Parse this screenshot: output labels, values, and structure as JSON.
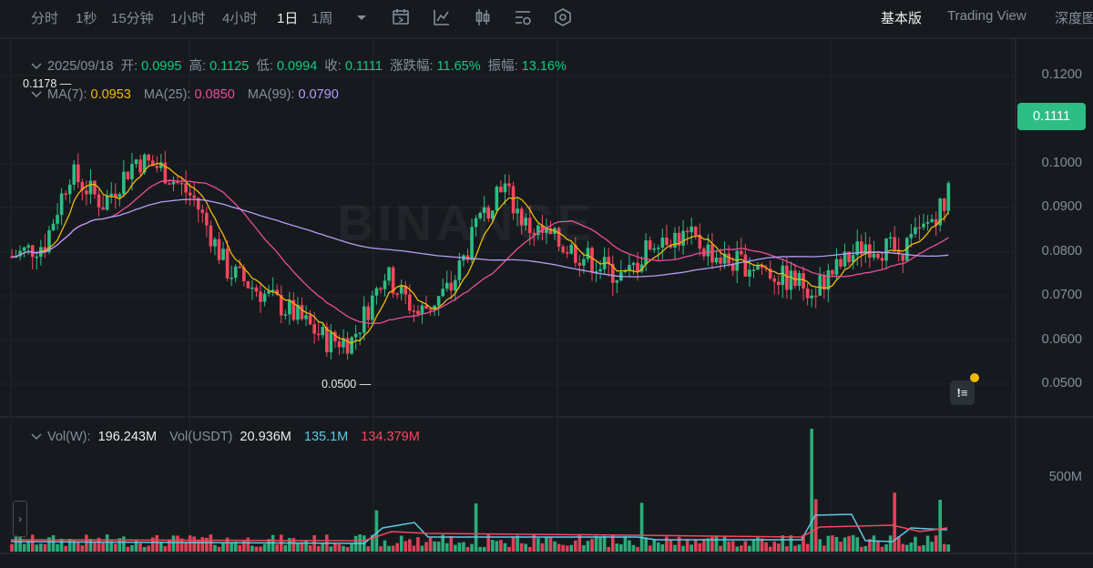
{
  "toolbar": {
    "timeframes": [
      "分时",
      "1秒",
      "15分钟",
      "1小时",
      "4小时",
      "1日",
      "1周"
    ],
    "active_timeframe": "1日",
    "views": [
      "基本版",
      "Trading View",
      "深度图"
    ],
    "active_view": "基本版",
    "tool_icons": [
      "chevron-down-icon",
      "calendar-icon",
      "indicator-icon",
      "candle-settings-icon",
      "layout-settings-icon",
      "hexagon-settings-icon"
    ]
  },
  "ohlc": {
    "date": "2025/09/18",
    "open_label": "开:",
    "open": "0.0995",
    "high_label": "高:",
    "high": "0.1125",
    "low_label": "低:",
    "low": "0.0994",
    "close_label": "收:",
    "close": "0.1111",
    "change_label": "涨跌幅:",
    "change": "11.65%",
    "amp_label": "振幅:",
    "amp": "13.16%"
  },
  "ma": {
    "ma7_label": "MA(7):",
    "ma7": "0.0953",
    "ma25_label": "MA(25):",
    "ma25": "0.0850",
    "ma99_label": "MA(99):",
    "ma99": "0.0790"
  },
  "volume": {
    "label": "Vol(W):",
    "value": "196.243M",
    "usdt_label": "Vol(USDT)",
    "usdt_value": "20.936M",
    "ma1": "135.1M",
    "ma2": "134.379M",
    "axis_label": "500M"
  },
  "price_axis": [
    "0.1200",
    "0.1000",
    "0.0900",
    "0.0800",
    "0.0700",
    "0.0600",
    "0.0500"
  ],
  "last_price": "0.1111",
  "extremes": {
    "high": "0.1178",
    "low": "0.0500"
  },
  "watermark": "BINANCE",
  "colors": {
    "up": "#2ebd85",
    "down": "#f6465d",
    "ma7": "#f0b90b",
    "ma25": "#eb4d9a",
    "ma99": "#b79cf7",
    "vol_ma1": "#5ec8e5"
  }
}
